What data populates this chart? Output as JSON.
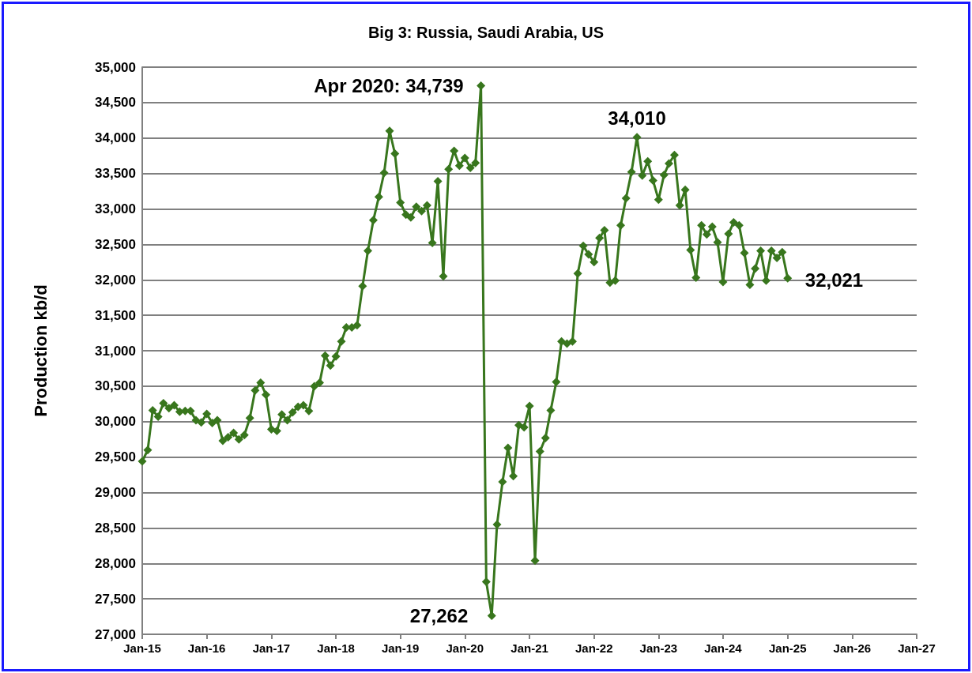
{
  "chart_data": {
    "type": "line",
    "title": "Big 3: Russia, Saudi Arabia, US",
    "ylabel": "Production kb/d",
    "x": [
      "2015-01",
      "2015-02",
      "2015-03",
      "2015-04",
      "2015-05",
      "2015-06",
      "2015-07",
      "2015-08",
      "2015-09",
      "2015-10",
      "2015-11",
      "2015-12",
      "2016-01",
      "2016-02",
      "2016-03",
      "2016-04",
      "2016-05",
      "2016-06",
      "2016-07",
      "2016-08",
      "2016-09",
      "2016-10",
      "2016-11",
      "2016-12",
      "2017-01",
      "2017-02",
      "2017-03",
      "2017-04",
      "2017-05",
      "2017-06",
      "2017-07",
      "2017-08",
      "2017-09",
      "2017-10",
      "2017-11",
      "2017-12",
      "2018-01",
      "2018-02",
      "2018-03",
      "2018-04",
      "2018-05",
      "2018-06",
      "2018-07",
      "2018-08",
      "2018-09",
      "2018-10",
      "2018-11",
      "2018-12",
      "2019-01",
      "2019-02",
      "2019-03",
      "2019-04",
      "2019-05",
      "2019-06",
      "2019-07",
      "2019-08",
      "2019-09",
      "2019-10",
      "2019-11",
      "2019-12",
      "2020-01",
      "2020-02",
      "2020-03",
      "2020-04",
      "2020-05",
      "2020-06",
      "2020-07",
      "2020-08",
      "2020-09",
      "2020-10",
      "2020-11",
      "2020-12",
      "2021-01",
      "2021-02",
      "2021-03",
      "2021-04",
      "2021-05",
      "2021-06",
      "2021-07",
      "2021-08",
      "2021-09",
      "2021-10",
      "2021-11",
      "2021-12",
      "2022-01",
      "2022-02",
      "2022-03",
      "2022-04",
      "2022-05",
      "2022-06",
      "2022-07",
      "2022-08",
      "2022-09",
      "2022-10",
      "2022-11",
      "2022-12",
      "2023-01",
      "2023-02",
      "2023-03",
      "2023-04",
      "2023-05",
      "2023-06",
      "2023-07",
      "2023-08",
      "2023-09",
      "2023-10",
      "2023-11",
      "2023-12",
      "2024-01",
      "2024-02",
      "2024-03",
      "2024-04",
      "2024-05",
      "2024-06",
      "2024-07",
      "2024-08",
      "2024-09",
      "2024-10",
      "2024-11",
      "2024-12",
      "2025-01"
    ],
    "series": [
      {
        "color": "#38761d",
        "values": [
          29440,
          29600,
          30160,
          30070,
          30260,
          30190,
          30230,
          30140,
          30150,
          30150,
          30020,
          29990,
          30110,
          29980,
          30020,
          29730,
          29780,
          29840,
          29750,
          29810,
          30050,
          30440,
          30550,
          30380,
          29890,
          29870,
          30100,
          30020,
          30130,
          30210,
          30230,
          30150,
          30500,
          30550,
          30930,
          30790,
          30920,
          31130,
          31330,
          31330,
          31360,
          31910,
          32410,
          32840,
          33170,
          33510,
          34100,
          33780,
          33090,
          32920,
          32880,
          33030,
          32970,
          33050,
          32520,
          33390,
          32050,
          33560,
          33820,
          33610,
          33720,
          33580,
          33650,
          34739,
          27740,
          27262,
          28550,
          29150,
          29630,
          29230,
          29950,
          29920,
          30220,
          28040,
          29580,
          29770,
          30160,
          30560,
          31130,
          31100,
          31130,
          32090,
          32480,
          32360,
          32250,
          32590,
          32700,
          31960,
          31990,
          32770,
          33150,
          33520,
          34010,
          33470,
          33670,
          33400,
          33130,
          33480,
          33640,
          33760,
          33050,
          33270,
          32420,
          32030,
          32770,
          32640,
          32750,
          32530,
          31970,
          32650,
          32810,
          32770,
          32380,
          31930,
          32160,
          32410,
          31990,
          32410,
          32310,
          32390,
          32021
        ]
      }
    ],
    "xlim": [
      "2015-01",
      "2027-01"
    ],
    "xticks": [
      {
        "value": "2015-01",
        "label": "Jan-15"
      },
      {
        "value": "2016-01",
        "label": "Jan-16"
      },
      {
        "value": "2017-01",
        "label": "Jan-17"
      },
      {
        "value": "2018-01",
        "label": "Jan-18"
      },
      {
        "value": "2019-01",
        "label": "Jan-19"
      },
      {
        "value": "2020-01",
        "label": "Jan-20"
      },
      {
        "value": "2021-01",
        "label": "Jan-21"
      },
      {
        "value": "2022-01",
        "label": "Jan-22"
      },
      {
        "value": "2023-01",
        "label": "Jan-23"
      },
      {
        "value": "2024-01",
        "label": "Jan-24"
      },
      {
        "value": "2025-01",
        "label": "Jan-25"
      },
      {
        "value": "2026-01",
        "label": "Jan-26"
      },
      {
        "value": "2027-01",
        "label": "Jan-27"
      }
    ],
    "ylim": [
      27000,
      35000
    ],
    "yticks": [
      {
        "value": 27000,
        "label": "27,000"
      },
      {
        "value": 27500,
        "label": "27,500"
      },
      {
        "value": 28000,
        "label": "28,000"
      },
      {
        "value": 28500,
        "label": "28,500"
      },
      {
        "value": 29000,
        "label": "29,000"
      },
      {
        "value": 29500,
        "label": "29,500"
      },
      {
        "value": 30000,
        "label": "30,000"
      },
      {
        "value": 30500,
        "label": "30,500"
      },
      {
        "value": 31000,
        "label": "31,000"
      },
      {
        "value": 31500,
        "label": "31,500"
      },
      {
        "value": 32000,
        "label": "32,000"
      },
      {
        "value": 32500,
        "label": "32,500"
      },
      {
        "value": 33000,
        "label": "33,000"
      },
      {
        "value": 33500,
        "label": "33,500"
      },
      {
        "value": 34000,
        "label": "34,000"
      },
      {
        "value": 34500,
        "label": "34,500"
      },
      {
        "value": 35000,
        "label": "35,000"
      }
    ],
    "annotations": [
      {
        "text": "Apr 2020: 34,739",
        "x": "2020-04",
        "y": 34739
      },
      {
        "text": "27,262",
        "x": "2020-06",
        "y": 27262
      },
      {
        "text": "34,010",
        "x": "2022-09",
        "y": 34010
      },
      {
        "text": "32,021",
        "x": "2025-01",
        "y": 32021
      }
    ],
    "grid": "y",
    "marker": "diamond",
    "line_style": "solid"
  }
}
